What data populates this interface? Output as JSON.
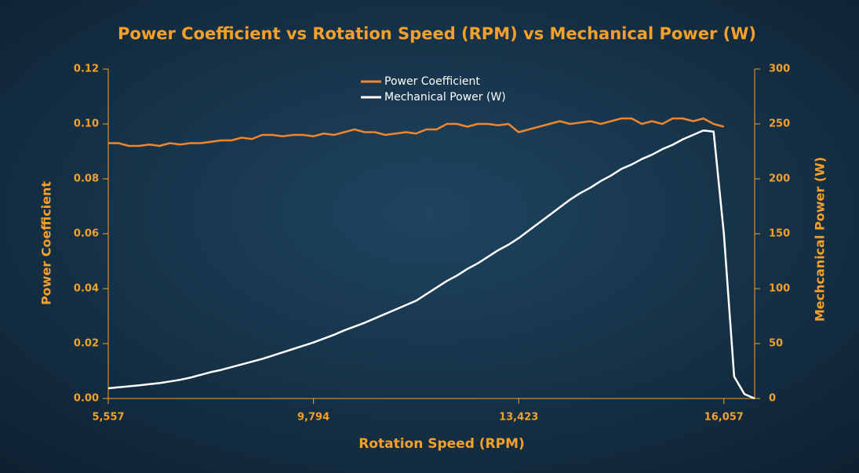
{
  "chart_data": {
    "type": "line",
    "title": "Power Coefficient vs Rotation Speed (RPM) vs Mechanical Power (W)",
    "x_label": "Rotation Speed (RPM)",
    "y_label": "Power Coefficient",
    "y2_label": "Mechcanical Power (W)",
    "categories": [
      "5,557",
      null,
      null,
      null,
      null,
      null,
      null,
      null,
      null,
      null,
      null,
      null,
      null,
      null,
      null,
      null,
      null,
      null,
      null,
      null,
      "9,794",
      null,
      null,
      null,
      null,
      null,
      null,
      null,
      null,
      null,
      null,
      null,
      null,
      null,
      null,
      null,
      null,
      null,
      null,
      null,
      "13,423",
      null,
      null,
      null,
      null,
      null,
      null,
      null,
      null,
      null,
      null,
      null,
      null,
      null,
      null,
      null,
      null,
      null,
      null,
      null,
      "16,057",
      null,
      null,
      null
    ],
    "series": [
      {
        "name": "Power Coefficient",
        "color": "#f0852d",
        "axis": "y",
        "values": [
          0.093,
          0.093,
          0.092,
          0.092,
          0.0925,
          0.092,
          0.093,
          0.0925,
          0.093,
          0.093,
          0.0935,
          0.094,
          0.094,
          0.095,
          0.0945,
          0.096,
          0.096,
          0.0955,
          0.096,
          0.096,
          0.0955,
          0.0965,
          0.096,
          0.097,
          0.098,
          0.097,
          0.097,
          0.096,
          0.0965,
          0.097,
          0.0965,
          0.098,
          0.098,
          0.1,
          0.1,
          0.099,
          0.1,
          0.1,
          0.0995,
          0.1,
          0.097,
          0.098,
          0.099,
          0.1,
          0.101,
          0.1,
          0.1005,
          0.101,
          0.1,
          0.101,
          0.102,
          0.102,
          0.1,
          0.101,
          0.1,
          0.102,
          0.102,
          0.101,
          0.102,
          0.1,
          0.099,
          null,
          null,
          null
        ]
      },
      {
        "name": "Mechanical Power (W)",
        "color": "#ffffff",
        "axis": "y2",
        "values": [
          9.3,
          10.2,
          11.1,
          12,
          13,
          14,
          15.5,
          17,
          19,
          21.5,
          24,
          26,
          28.5,
          31,
          33.5,
          36,
          39,
          42,
          45,
          48,
          51,
          54.5,
          58,
          62,
          65.5,
          69,
          73,
          77,
          81,
          85,
          89,
          95,
          101,
          107,
          112,
          118,
          123,
          129,
          135,
          140,
          146,
          153,
          160,
          167,
          174,
          181,
          187,
          192,
          198,
          203,
          209,
          213,
          218,
          222,
          227,
          231,
          236,
          240,
          244,
          243,
          150,
          20,
          4,
          0
        ]
      }
    ],
    "ylim": [
      0,
      0.12
    ],
    "yticks": [
      {
        "value": 0,
        "label": "0.00"
      },
      {
        "value": 0.02,
        "label": "0.02"
      },
      {
        "value": 0.04,
        "label": "0.04"
      },
      {
        "value": 0.06,
        "label": "0.06"
      },
      {
        "value": 0.08,
        "label": "0.08"
      },
      {
        "value": 0.1,
        "label": "0.10"
      },
      {
        "value": 0.12,
        "label": "0.12"
      }
    ],
    "y2lim": [
      0,
      300
    ],
    "y2ticks": [
      0,
      50,
      100,
      150,
      200,
      250,
      300
    ],
    "legend": "top",
    "axis_color": "#f5a02a"
  }
}
